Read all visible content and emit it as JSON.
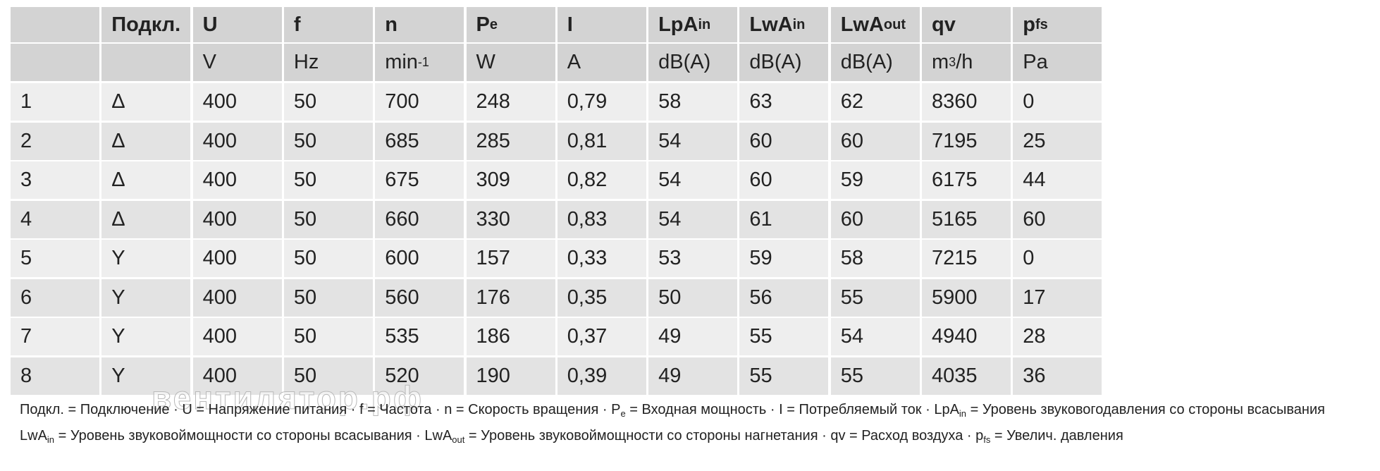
{
  "table": {
    "header": [
      [
        [],
        [
          {
            "t": "Подкл."
          }
        ],
        [
          {
            "t": "U"
          }
        ],
        [
          {
            "t": "f"
          }
        ],
        [
          {
            "t": "n"
          }
        ],
        [
          {
            "t": "P"
          },
          {
            "t": "e",
            "s": "sub"
          }
        ],
        [
          {
            "t": "I"
          }
        ],
        [
          {
            "t": "LpA"
          },
          {
            "t": "in",
            "s": "sub"
          }
        ],
        [
          {
            "t": "LwA"
          },
          {
            "t": "in",
            "s": "sub"
          }
        ],
        [
          {
            "t": "LwA"
          },
          {
            "t": "out",
            "s": "sub"
          }
        ],
        [
          {
            "t": "qv"
          }
        ],
        [
          {
            "t": "p"
          },
          {
            "t": "fs",
            "s": "sub"
          }
        ]
      ],
      [
        [],
        [],
        [
          {
            "t": "V"
          }
        ],
        [
          {
            "t": "Hz"
          }
        ],
        [
          {
            "t": "min"
          },
          {
            "t": "-1",
            "s": "sup"
          }
        ],
        [
          {
            "t": "W"
          }
        ],
        [
          {
            "t": "A"
          }
        ],
        [
          {
            "t": "dB(A)"
          }
        ],
        [
          {
            "t": "dB(A)"
          }
        ],
        [
          {
            "t": "dB(A)"
          }
        ],
        [
          {
            "t": "m"
          },
          {
            "t": "3",
            "s": "sup"
          },
          {
            "t": "/h"
          }
        ],
        [
          {
            "t": "Pa"
          }
        ]
      ]
    ],
    "rows": [
      [
        "1",
        "Δ",
        "400",
        "50",
        "700",
        "248",
        "0,79",
        "58",
        "63",
        "62",
        "8360",
        "0"
      ],
      [
        "2",
        "Δ",
        "400",
        "50",
        "685",
        "285",
        "0,81",
        "54",
        "60",
        "60",
        "7195",
        "25"
      ],
      [
        "3",
        "Δ",
        "400",
        "50",
        "675",
        "309",
        "0,82",
        "54",
        "60",
        "59",
        "6175",
        "44"
      ],
      [
        "4",
        "Δ",
        "400",
        "50",
        "660",
        "330",
        "0,83",
        "54",
        "61",
        "60",
        "5165",
        "60"
      ],
      [
        "5",
        "Y",
        "400",
        "50",
        "600",
        "157",
        "0,33",
        "53",
        "59",
        "58",
        "7215",
        "0"
      ],
      [
        "6",
        "Y",
        "400",
        "50",
        "560",
        "176",
        "0,35",
        "50",
        "56",
        "55",
        "5900",
        "17"
      ],
      [
        "7",
        "Y",
        "400",
        "50",
        "535",
        "186",
        "0,37",
        "49",
        "55",
        "54",
        "4940",
        "28"
      ],
      [
        "8",
        "Y",
        "400",
        "50",
        "520",
        "190",
        "0,39",
        "49",
        "55",
        "55",
        "4035",
        "36"
      ]
    ]
  },
  "footer": [
    [
      {
        "t": "Подкл. = Подключение · U = Напряжение питания · f = Частота · n = Скорость вращения · P"
      },
      {
        "t": "e",
        "s": "sub"
      },
      {
        "t": " = Входная мощность · I = Потребляемый ток · LpA"
      },
      {
        "t": "in",
        "s": "sub"
      },
      {
        "t": " = Уровень звуковогодавления со стороны всасывания"
      }
    ],
    [
      {
        "t": "LwA"
      },
      {
        "t": "in",
        "s": "sub"
      },
      {
        "t": " = Уровень звуковоймощности со стороны всасывания · LwA"
      },
      {
        "t": "out",
        "s": "sub"
      },
      {
        "t": " = Уровень звуковоймощности со стороны нагнетания · qv = Расход воздуха · p"
      },
      {
        "t": "fs",
        "s": "sub"
      },
      {
        "t": " = Увелич. давления"
      }
    ]
  ],
  "watermark": "вентилятор.рф"
}
